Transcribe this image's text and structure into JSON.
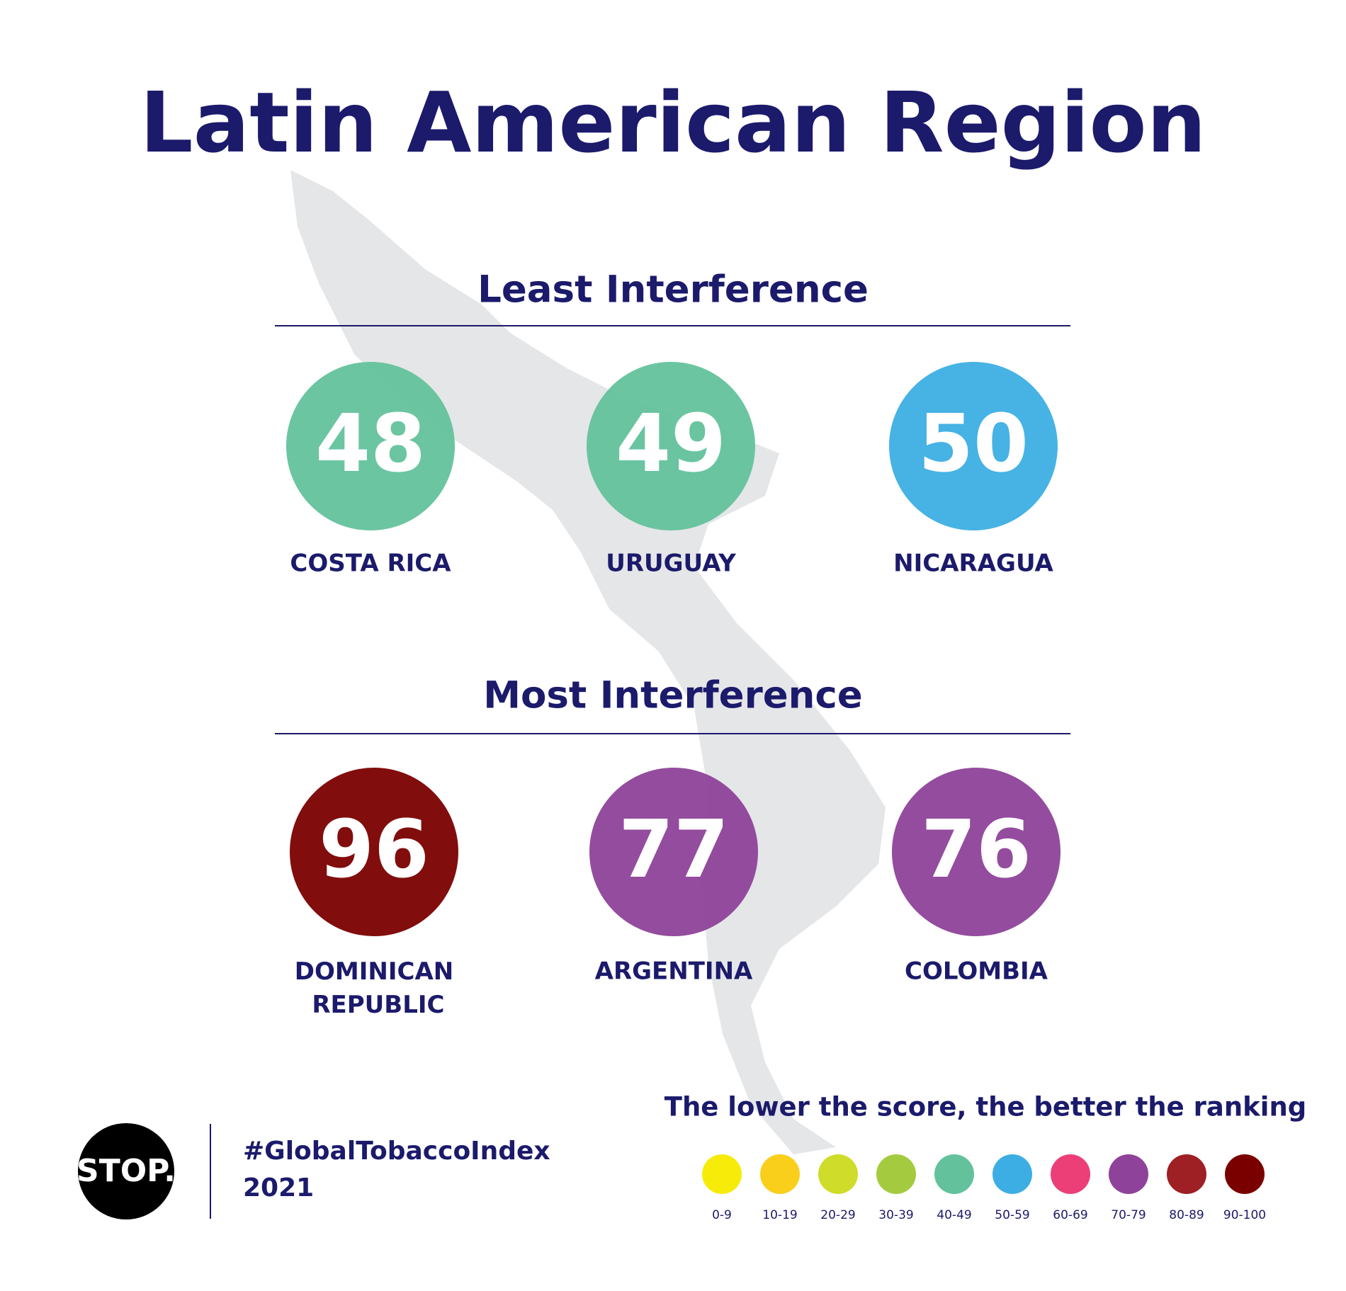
{
  "header": {
    "title": "Latin American Region"
  },
  "sections": [
    {
      "heading": "Least Interference",
      "items": [
        {
          "score": "48",
          "country": "COSTA RICA",
          "color": "#63c29c"
        },
        {
          "score": "49",
          "country": "URUGUAY",
          "color": "#63c29c"
        },
        {
          "score": "50",
          "country": "NICARAGUA",
          "color": "#3daee3"
        }
      ]
    },
    {
      "heading": "Most Interference",
      "items": [
        {
          "score": "96",
          "country": "DOMINICAN REPUBLIC",
          "color": "#7a0000"
        },
        {
          "score": "77",
          "country": "ARGENTINA",
          "color": "#8e4299"
        },
        {
          "score": "76",
          "country": "COLOMBIA",
          "color": "#8e4299"
        }
      ]
    }
  ],
  "legend": {
    "title": "The lower the score, the better the ranking",
    "items": [
      {
        "label": "0-9",
        "color": "#f7eb0a"
      },
      {
        "label": "10-19",
        "color": "#f9cf1b"
      },
      {
        "label": "20-29",
        "color": "#cfdc2a"
      },
      {
        "label": "30-39",
        "color": "#a4cb3f"
      },
      {
        "label": "40-49",
        "color": "#63c29c"
      },
      {
        "label": "50-59",
        "color": "#3daee3"
      },
      {
        "label": "60-69",
        "color": "#ec3f77"
      },
      {
        "label": "70-79",
        "color": "#8e4299"
      },
      {
        "label": "80-89",
        "color": "#9e1f24"
      },
      {
        "label": "90-100",
        "color": "#7a0000"
      }
    ]
  },
  "footer": {
    "logo": "STOP.",
    "hashtag": "#GlobalTobaccoIndex",
    "year": "2021"
  }
}
